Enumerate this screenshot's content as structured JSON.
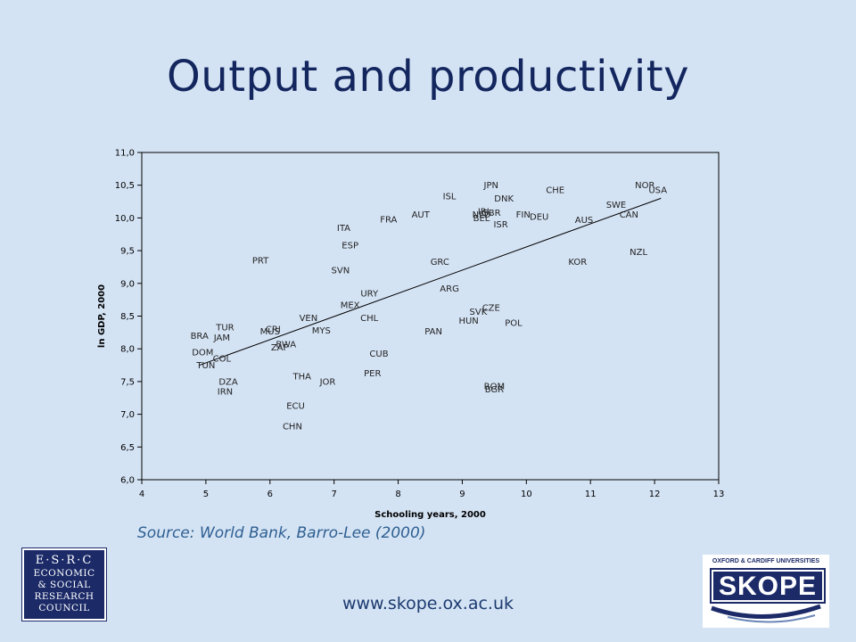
{
  "slide": {
    "title": "Output and productivity",
    "source": "Source: World Bank, Barro-Lee (2000)",
    "url": "www.skope.ox.ac.uk"
  },
  "logos": {
    "esrc": [
      "E·S·R·C",
      "ECONOMIC",
      "& SOCIAL",
      "RESEARCH",
      "COUNCIL"
    ],
    "skope_top": "OXFORD & CARDIFF UNIVERSITIES",
    "skope_word": "SKOPE"
  },
  "colors": {
    "background": "#d4e3f4",
    "title": "#13265e",
    "source": "#2e5f91",
    "logo_navy": "#1c2b68"
  },
  "chart_data": {
    "type": "scatter",
    "xlabel": "Schooling years, 2000",
    "ylabel": "ln GDP, 2000",
    "xlim": [
      4,
      13
    ],
    "ylim": [
      6.0,
      11.0
    ],
    "x_ticks": [
      4,
      5,
      6,
      7,
      8,
      9,
      10,
      11,
      12,
      13
    ],
    "y_ticks": [
      "6,0",
      "6,5",
      "7,0",
      "7,5",
      "8,0",
      "8,5",
      "9,0",
      "9,5",
      "10,0",
      "10,5",
      "11,0"
    ],
    "grid": false,
    "markers": "country code labels",
    "points": [
      {
        "label": "JPN",
        "x": 9.45,
        "y": 10.5
      },
      {
        "label": "NOR",
        "x": 11.85,
        "y": 10.5
      },
      {
        "label": "USA",
        "x": 12.05,
        "y": 10.43
      },
      {
        "label": "CHE",
        "x": 10.45,
        "y": 10.43
      },
      {
        "label": "ISL",
        "x": 8.8,
        "y": 10.33
      },
      {
        "label": "DNK",
        "x": 9.65,
        "y": 10.3
      },
      {
        "label": "SWE",
        "x": 11.4,
        "y": 10.2
      },
      {
        "label": "IRL",
        "x": 9.35,
        "y": 10.1
      },
      {
        "label": "GBR",
        "x": 9.45,
        "y": 10.08
      },
      {
        "label": "NLD",
        "x": 9.3,
        "y": 10.05
      },
      {
        "label": "BEL",
        "x": 9.3,
        "y": 10.0
      },
      {
        "label": "AUT",
        "x": 8.35,
        "y": 10.05
      },
      {
        "label": "FIN",
        "x": 9.95,
        "y": 10.05
      },
      {
        "label": "DEU",
        "x": 10.2,
        "y": 10.02
      },
      {
        "label": "CAN",
        "x": 11.6,
        "y": 10.05
      },
      {
        "label": "AUS",
        "x": 10.9,
        "y": 9.97
      },
      {
        "label": "FRA",
        "x": 7.85,
        "y": 9.98
      },
      {
        "label": "ISR",
        "x": 9.6,
        "y": 9.9
      },
      {
        "label": "ITA",
        "x": 7.15,
        "y": 9.85
      },
      {
        "label": "ESP",
        "x": 7.25,
        "y": 9.58
      },
      {
        "label": "NZL",
        "x": 11.75,
        "y": 9.48
      },
      {
        "label": "PRT",
        "x": 5.85,
        "y": 9.35
      },
      {
        "label": "GRC",
        "x": 8.65,
        "y": 9.33
      },
      {
        "label": "KOR",
        "x": 10.8,
        "y": 9.33
      },
      {
        "label": "SVN",
        "x": 7.1,
        "y": 9.2
      },
      {
        "label": "ARG",
        "x": 8.8,
        "y": 8.92
      },
      {
        "label": "URY",
        "x": 7.55,
        "y": 8.85
      },
      {
        "label": "CZE",
        "x": 9.45,
        "y": 8.63
      },
      {
        "label": "MEX",
        "x": 7.25,
        "y": 8.67
      },
      {
        "label": "SVK",
        "x": 9.25,
        "y": 8.57
      },
      {
        "label": "CHL",
        "x": 7.55,
        "y": 8.47
      },
      {
        "label": "VEN",
        "x": 6.6,
        "y": 8.47
      },
      {
        "label": "HUN",
        "x": 9.1,
        "y": 8.43
      },
      {
        "label": "POL",
        "x": 9.8,
        "y": 8.4
      },
      {
        "label": "TUR",
        "x": 5.3,
        "y": 8.33
      },
      {
        "label": "CRI",
        "x": 6.05,
        "y": 8.3
      },
      {
        "label": "MUS",
        "x": 6.0,
        "y": 8.27
      },
      {
        "label": "MYS",
        "x": 6.8,
        "y": 8.28
      },
      {
        "label": "PAN",
        "x": 8.55,
        "y": 8.27
      },
      {
        "label": "BRA",
        "x": 4.9,
        "y": 8.2
      },
      {
        "label": "JAM",
        "x": 5.25,
        "y": 8.17
      },
      {
        "label": "BWA",
        "x": 6.25,
        "y": 8.07
      },
      {
        "label": "ZAF",
        "x": 6.15,
        "y": 8.02
      },
      {
        "label": "DOM",
        "x": 4.95,
        "y": 7.95
      },
      {
        "label": "CUB",
        "x": 7.7,
        "y": 7.93
      },
      {
        "label": "COL",
        "x": 5.25,
        "y": 7.85
      },
      {
        "label": "TUN",
        "x": 5.0,
        "y": 7.75
      },
      {
        "label": "PER",
        "x": 7.6,
        "y": 7.63
      },
      {
        "label": "THA",
        "x": 6.5,
        "y": 7.58
      },
      {
        "label": "DZA",
        "x": 5.35,
        "y": 7.5
      },
      {
        "label": "JOR",
        "x": 6.9,
        "y": 7.5
      },
      {
        "label": "ROM",
        "x": 9.5,
        "y": 7.43
      },
      {
        "label": "BGR",
        "x": 9.5,
        "y": 7.38
      },
      {
        "label": "IRN",
        "x": 5.3,
        "y": 7.35
      },
      {
        "label": "ECU",
        "x": 6.4,
        "y": 7.13
      },
      {
        "label": "CHN",
        "x": 6.35,
        "y": 6.82
      }
    ],
    "trendline": {
      "x": [
        4.9,
        12.1
      ],
      "y": [
        7.75,
        10.3
      ]
    }
  }
}
